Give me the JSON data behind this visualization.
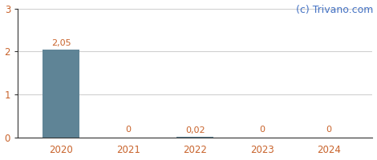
{
  "categories": [
    "2020",
    "2021",
    "2022",
    "2023",
    "2024"
  ],
  "values": [
    2.05,
    0,
    0.02,
    0,
    0
  ],
  "bar_color": "#5f8496",
  "bar_labels": [
    "2,05",
    "0",
    "0,02",
    "0",
    "0"
  ],
  "ylim": [
    0,
    3
  ],
  "yticks": [
    0,
    1,
    2,
    3
  ],
  "background_color": "#ffffff",
  "grid_color": "#d0d0d0",
  "watermark": "(c) Trivano.com",
  "watermark_color": "#4472c4",
  "label_color": "#c8622a",
  "tick_color": "#c8622a",
  "spine_color": "#333333",
  "label_fontsize": 8,
  "tick_fontsize": 8.5,
  "watermark_fontsize": 9
}
